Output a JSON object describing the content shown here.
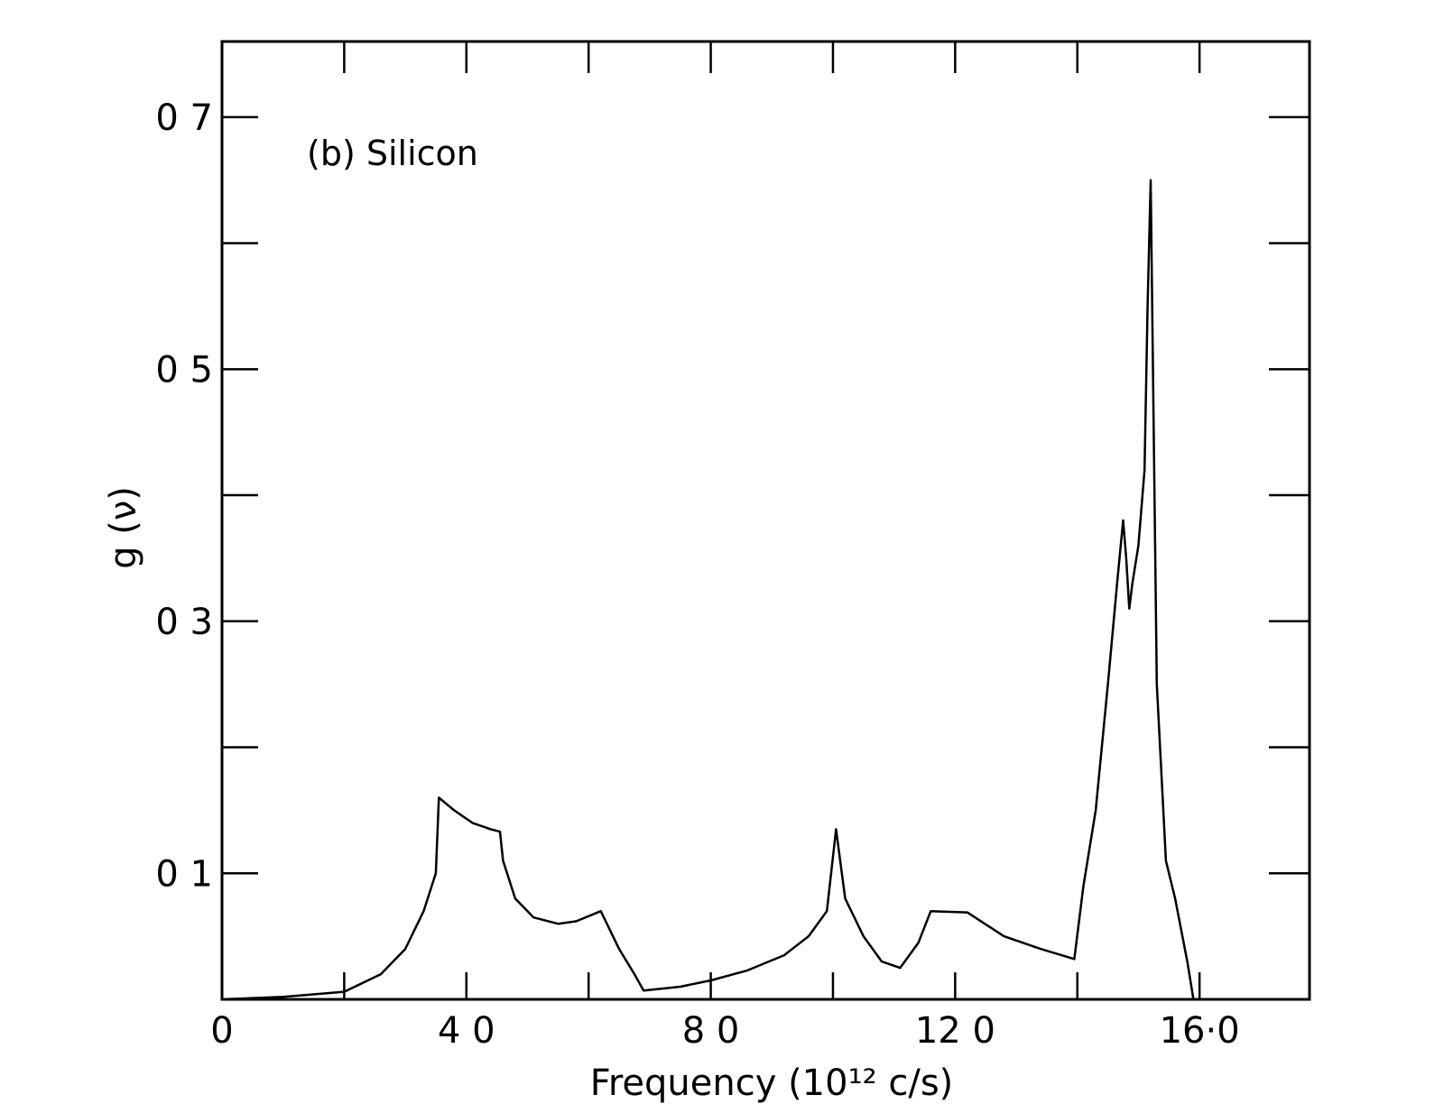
{
  "chart_data": {
    "type": "line",
    "annotation": "(b) Silicon",
    "xlabel": "Frequency (10¹² c/s)",
    "ylabel": "g (ν)",
    "xlim": [
      0,
      17.8
    ],
    "ylim": [
      0,
      0.76
    ],
    "x_ticks": [
      {
        "value": 0,
        "label": "0"
      },
      {
        "value": 2,
        "label": ""
      },
      {
        "value": 4,
        "label": "4 0"
      },
      {
        "value": 6,
        "label": ""
      },
      {
        "value": 8,
        "label": "8 0"
      },
      {
        "value": 10,
        "label": ""
      },
      {
        "value": 12,
        "label": "12 0"
      },
      {
        "value": 14,
        "label": ""
      },
      {
        "value": 16,
        "label": "16·0"
      }
    ],
    "y_ticks": [
      {
        "value": 0.1,
        "label": "0 1"
      },
      {
        "value": 0.2,
        "label": ""
      },
      {
        "value": 0.3,
        "label": "0 3"
      },
      {
        "value": 0.4,
        "label": ""
      },
      {
        "value": 0.5,
        "label": "0 5"
      },
      {
        "value": 0.6,
        "label": ""
      },
      {
        "value": 0.7,
        "label": "0 7"
      }
    ],
    "grid": false,
    "series": [
      {
        "x": [
          0,
          1.0,
          2.0,
          2.6,
          3.0,
          3.3,
          3.5,
          3.55,
          3.8,
          4.1,
          4.4,
          4.55,
          4.6,
          4.8,
          5.1,
          5.5,
          5.8,
          6.2,
          6.5,
          6.75,
          6.9,
          7.5,
          8.0,
          8.6,
          9.2,
          9.6,
          9.9,
          10.05,
          10.2,
          10.5,
          10.8,
          11.1,
          11.4,
          11.6,
          12.2,
          12.8,
          13.4,
          13.95,
          14.1,
          14.3,
          14.5,
          14.65,
          14.75,
          14.8,
          14.85,
          14.9,
          15.0,
          15.1,
          15.15,
          15.2,
          15.25,
          15.3,
          15.45,
          15.6,
          15.8,
          15.9
        ],
        "y": [
          0,
          0.002,
          0.006,
          0.02,
          0.04,
          0.07,
          0.1,
          0.16,
          0.15,
          0.14,
          0.135,
          0.133,
          0.11,
          0.08,
          0.065,
          0.06,
          0.062,
          0.07,
          0.04,
          0.02,
          0.007,
          0.01,
          0.015,
          0.023,
          0.035,
          0.05,
          0.07,
          0.135,
          0.08,
          0.05,
          0.03,
          0.025,
          0.045,
          0.07,
          0.069,
          0.05,
          0.04,
          0.032,
          0.09,
          0.15,
          0.25,
          0.33,
          0.38,
          0.35,
          0.31,
          0.33,
          0.36,
          0.42,
          0.55,
          0.65,
          0.45,
          0.25,
          0.11,
          0.08,
          0.03,
          0
        ]
      }
    ]
  }
}
